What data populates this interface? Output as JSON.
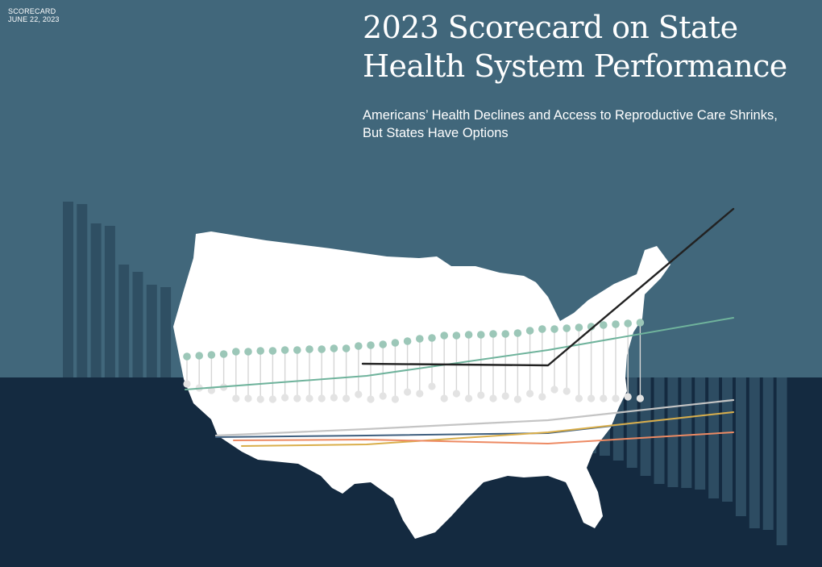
{
  "header": {
    "label": "SCORECARD",
    "date": "JUNE 22, 2023",
    "title_lines": [
      "2023 Scorecard on State",
      "Health System Performance"
    ],
    "subtitle_lines": [
      "Americans’ Health Declines and Access to Reproductive Care Shrinks,",
      "But States Have Options"
    ]
  },
  "colors": {
    "upper_background": "#41677b",
    "lower_background": "#142a40",
    "bar_upper": "#2f4f63",
    "bar_lower": "#2d4c62",
    "map_fill": "#ffffff",
    "dot_teal": "#9cc7b8",
    "dot_gray": "#e3e3e3",
    "line_black": "#222222",
    "line_teal": "#6fb39c",
    "line_gray": "#c4c4c4",
    "line_gold": "#d9ae4a",
    "line_orange": "#ed8a63",
    "line_navy": "#3f5f7f"
  },
  "illustration": {
    "description_icon": "us-map-icon"
  }
}
